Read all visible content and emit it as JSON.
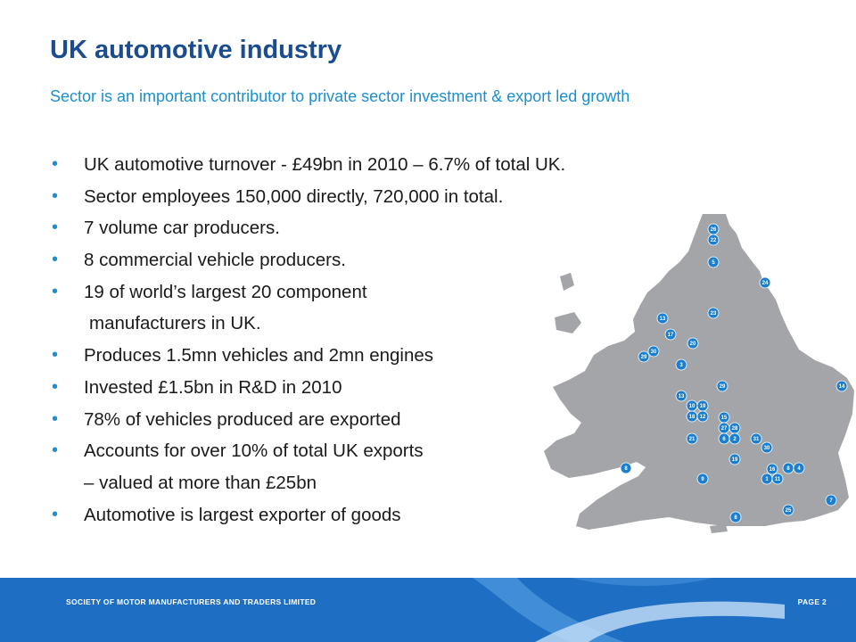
{
  "slide": {
    "title": "UK automotive industry",
    "subtitle": "Sector is an important contributor to private sector investment & export led growth"
  },
  "bullets": [
    "UK automotive turnover  - £49bn in 2010 – 6.7% of total UK.",
    "Sector employees 150,000 directly, 720,000 in total.",
    "7 volume car producers.",
    "8 commercial vehicle producers.",
    "19 of world’s largest 20 component",
    "manufacturers in UK.",
    "Produces 1.5mn vehicles and 2mn engines",
    "Invested £1.5bn in R&D in 2010",
    "78% of vehicles produced are exported",
    "Accounts for over 10% of total UK exports",
    "– valued at more than £25bn",
    "Automotive is largest exporter of goods"
  ],
  "bullet_glyph": "•",
  "map": {
    "land_color": "#a3a5a8",
    "marker_color": "#1b7fd1",
    "markers": [
      {
        "label": "26"
      },
      {
        "label": "22"
      },
      {
        "label": "5"
      },
      {
        "label": "24"
      },
      {
        "label": "23"
      },
      {
        "label": "13"
      },
      {
        "label": "17"
      },
      {
        "label": "20"
      },
      {
        "label": "30"
      },
      {
        "label": "29"
      },
      {
        "label": "3"
      },
      {
        "label": "29"
      },
      {
        "label": "14"
      },
      {
        "label": "13"
      },
      {
        "label": "10"
      },
      {
        "label": "19"
      },
      {
        "label": "18"
      },
      {
        "label": "12"
      },
      {
        "label": "15"
      },
      {
        "label": "27"
      },
      {
        "label": "28"
      },
      {
        "label": "21"
      },
      {
        "label": "6"
      },
      {
        "label": "2"
      },
      {
        "label": "31"
      },
      {
        "label": "30"
      },
      {
        "label": "19"
      },
      {
        "label": "16"
      },
      {
        "label": "8"
      },
      {
        "label": "4"
      },
      {
        "label": "1"
      },
      {
        "label": "11"
      },
      {
        "label": "8"
      },
      {
        "label": "9"
      },
      {
        "label": "7"
      },
      {
        "label": "25"
      },
      {
        "label": "8"
      }
    ]
  },
  "footer": {
    "company": "SOCIETY OF MOTOR MANUFACTURERS AND TRADERS LIMITED",
    "page": "PAGE 2",
    "background_color": "#1e6fc4"
  }
}
